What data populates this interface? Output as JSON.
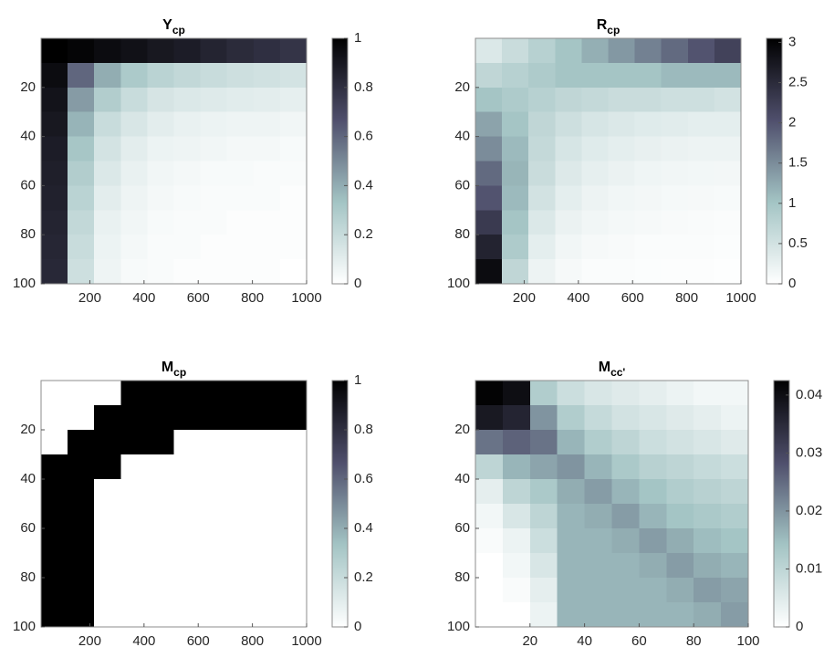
{
  "chart_data": [
    {
      "type": "heatmap",
      "title": "Y",
      "title_subscript": "cp",
      "x": [
        69,
        167,
        265,
        363,
        461,
        559,
        657,
        755,
        853,
        951
      ],
      "y": [
        5,
        15,
        25,
        35,
        45,
        55,
        65,
        75,
        85,
        95
      ],
      "z": [
        [
          1,
          0.98,
          0.95,
          0.93,
          0.9,
          0.88,
          0.85,
          0.82,
          0.8,
          0.78
        ],
        [
          0.95,
          0.6,
          0.4,
          0.3,
          0.25,
          0.22,
          0.2,
          0.18,
          0.17,
          0.16
        ],
        [
          0.92,
          0.45,
          0.28,
          0.2,
          0.15,
          0.13,
          0.12,
          0.11,
          0.1,
          0.09
        ],
        [
          0.9,
          0.38,
          0.2,
          0.14,
          0.1,
          0.08,
          0.07,
          0.06,
          0.06,
          0.05
        ],
        [
          0.88,
          0.32,
          0.16,
          0.1,
          0.07,
          0.06,
          0.05,
          0.04,
          0.04,
          0.03
        ],
        [
          0.87,
          0.28,
          0.13,
          0.08,
          0.05,
          0.04,
          0.03,
          0.03,
          0.02,
          0.02
        ],
        [
          0.86,
          0.25,
          0.1,
          0.06,
          0.04,
          0.03,
          0.02,
          0.02,
          0.02,
          0.01
        ],
        [
          0.85,
          0.22,
          0.08,
          0.05,
          0.03,
          0.02,
          0.02,
          0.01,
          0.01,
          0.01
        ],
        [
          0.84,
          0.2,
          0.07,
          0.04,
          0.02,
          0.02,
          0.01,
          0.01,
          0.01,
          0.01
        ],
        [
          0.83,
          0.18,
          0.06,
          0.03,
          0.02,
          0.01,
          0.01,
          0.01,
          0.01,
          0
        ]
      ],
      "xlim": [
        20,
        1000
      ],
      "ylim": [
        0,
        100
      ],
      "y_reversed": true,
      "xticks": [
        200,
        400,
        600,
        800,
        1000
      ],
      "yticks": [
        20,
        40,
        60,
        80,
        100
      ],
      "clim": [
        0,
        1
      ],
      "cticks": [
        0,
        0.2,
        0.4,
        0.6,
        0.8,
        1
      ],
      "colormap": [
        "#ffffff",
        "#a3c4c4",
        "#4f4f6c",
        "#000000"
      ]
    },
    {
      "type": "heatmap",
      "title": "R",
      "title_subscript": "cp",
      "x": [
        69,
        167,
        265,
        363,
        461,
        559,
        657,
        755,
        853,
        951
      ],
      "y": [
        5,
        15,
        25,
        35,
        45,
        55,
        65,
        75,
        85,
        95
      ],
      "z": [
        [
          0.4,
          0.6,
          0.8,
          1.0,
          1.2,
          1.4,
          1.6,
          1.8,
          2.0,
          2.2
        ],
        [
          0.7,
          0.8,
          0.9,
          1.0,
          1.0,
          1.0,
          1.0,
          1.1,
          1.1,
          1.1
        ],
        [
          1.0,
          0.9,
          0.8,
          0.7,
          0.65,
          0.6,
          0.6,
          0.55,
          0.55,
          0.5
        ],
        [
          1.3,
          1.0,
          0.7,
          0.55,
          0.45,
          0.4,
          0.35,
          0.33,
          0.3,
          0.3
        ],
        [
          1.5,
          1.1,
          0.65,
          0.45,
          0.35,
          0.3,
          0.25,
          0.22,
          0.2,
          0.2
        ],
        [
          1.8,
          1.15,
          0.6,
          0.38,
          0.28,
          0.22,
          0.18,
          0.15,
          0.14,
          0.13
        ],
        [
          2.0,
          1.1,
          0.5,
          0.3,
          0.2,
          0.16,
          0.13,
          0.11,
          0.1,
          0.09
        ],
        [
          2.3,
          1.0,
          0.4,
          0.22,
          0.15,
          0.12,
          0.1,
          0.08,
          0.07,
          0.06
        ],
        [
          2.6,
          0.9,
          0.3,
          0.16,
          0.1,
          0.08,
          0.06,
          0.05,
          0.05,
          0.04
        ],
        [
          2.9,
          0.7,
          0.2,
          0.1,
          0.06,
          0.05,
          0.04,
          0.03,
          0.03,
          0.02
        ]
      ],
      "xlim": [
        20,
        1000
      ],
      "ylim": [
        0,
        100
      ],
      "y_reversed": true,
      "xticks": [
        200,
        400,
        600,
        800,
        1000
      ],
      "yticks": [
        20,
        40,
        60,
        80,
        100
      ],
      "clim": [
        0,
        3.05
      ],
      "cticks": [
        0,
        0.5,
        1,
        1.5,
        2,
        2.5,
        3
      ],
      "colormap": [
        "#ffffff",
        "#a3c4c4",
        "#4f4f6c",
        "#000000"
      ]
    },
    {
      "type": "heatmap",
      "title": "M",
      "title_subscript": "cp",
      "x": [
        69,
        167,
        265,
        363,
        461,
        559,
        657,
        755,
        853,
        951
      ],
      "y": [
        5,
        15,
        25,
        35,
        45,
        55,
        65,
        75,
        85,
        95
      ],
      "z": [
        [
          0,
          0,
          0,
          1,
          1,
          1,
          1,
          1,
          1,
          1
        ],
        [
          0,
          0,
          1,
          1,
          1,
          1,
          1,
          1,
          1,
          1
        ],
        [
          0,
          1,
          1,
          1,
          1,
          0,
          0,
          0,
          0,
          0
        ],
        [
          1,
          1,
          1,
          0,
          0,
          0,
          0,
          0,
          0,
          0
        ],
        [
          1,
          1,
          0,
          0,
          0,
          0,
          0,
          0,
          0,
          0
        ],
        [
          1,
          1,
          0,
          0,
          0,
          0,
          0,
          0,
          0,
          0
        ],
        [
          1,
          1,
          0,
          0,
          0,
          0,
          0,
          0,
          0,
          0
        ],
        [
          1,
          1,
          0,
          0,
          0,
          0,
          0,
          0,
          0,
          0
        ],
        [
          1,
          1,
          0,
          0,
          0,
          0,
          0,
          0,
          0,
          0
        ],
        [
          1,
          1,
          0,
          0,
          0,
          0,
          0,
          0,
          0,
          0
        ]
      ],
      "xlim": [
        20,
        1000
      ],
      "ylim": [
        0,
        100
      ],
      "y_reversed": true,
      "xticks": [
        200,
        400,
        600,
        800,
        1000
      ],
      "yticks": [
        20,
        40,
        60,
        80,
        100
      ],
      "clim": [
        0,
        1
      ],
      "cticks": [
        0,
        0.2,
        0.4,
        0.6,
        0.8,
        1
      ],
      "colormap": [
        "#ffffff",
        "#a3c4c4",
        "#4f4f6c",
        "#000000"
      ]
    },
    {
      "type": "heatmap",
      "title": "M",
      "title_subscript": "cc'",
      "x": [
        5,
        15,
        25,
        35,
        45,
        55,
        65,
        75,
        85,
        95
      ],
      "y": [
        5,
        15,
        25,
        35,
        45,
        55,
        65,
        75,
        85,
        95
      ],
      "z": [
        [
          0.042,
          0.04,
          0.012,
          0.008,
          0.006,
          0.005,
          0.004,
          0.003,
          0.002,
          0.002
        ],
        [
          0.038,
          0.036,
          0.02,
          0.012,
          0.009,
          0.007,
          0.006,
          0.005,
          0.004,
          0.003
        ],
        [
          0.024,
          0.026,
          0.024,
          0.016,
          0.012,
          0.01,
          0.008,
          0.007,
          0.006,
          0.005
        ],
        [
          0.01,
          0.016,
          0.018,
          0.02,
          0.016,
          0.013,
          0.011,
          0.01,
          0.009,
          0.008
        ],
        [
          0.004,
          0.01,
          0.013,
          0.017,
          0.019,
          0.016,
          0.014,
          0.012,
          0.011,
          0.01
        ],
        [
          0.002,
          0.006,
          0.01,
          0.016,
          0.017,
          0.019,
          0.016,
          0.014,
          0.013,
          0.012
        ],
        [
          0.001,
          0.003,
          0.008,
          0.016,
          0.016,
          0.017,
          0.019,
          0.017,
          0.015,
          0.014
        ],
        [
          0,
          0.002,
          0.006,
          0.016,
          0.016,
          0.016,
          0.017,
          0.019,
          0.017,
          0.016
        ],
        [
          0,
          0.001,
          0.004,
          0.016,
          0.016,
          0.016,
          0.016,
          0.017,
          0.019,
          0.018
        ],
        [
          0,
          0,
          0.003,
          0.016,
          0.016,
          0.016,
          0.016,
          0.016,
          0.017,
          0.019
        ]
      ],
      "xlim": [
        0,
        100
      ],
      "ylim": [
        0,
        100
      ],
      "y_reversed": true,
      "xticks": [
        20,
        40,
        60,
        80,
        100
      ],
      "yticks": [
        20,
        40,
        60,
        80,
        100
      ],
      "clim": [
        0,
        0.0425
      ],
      "cticks": [
        0,
        0.01,
        0.02,
        0.03,
        0.04
      ],
      "colormap": [
        "#ffffff",
        "#a3c4c4",
        "#4f4f6c",
        "#000000"
      ]
    }
  ]
}
